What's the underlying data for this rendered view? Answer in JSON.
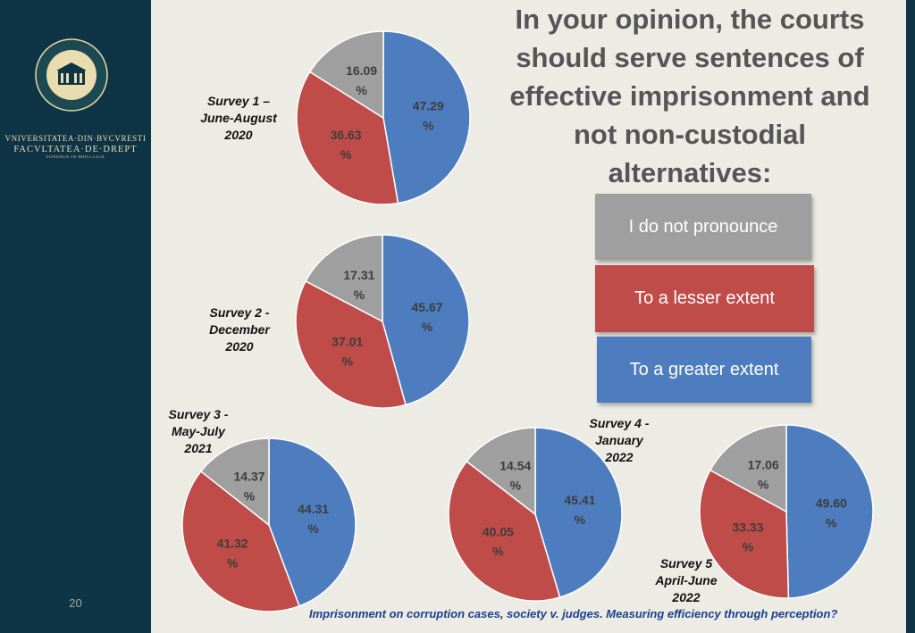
{
  "sidebar": {
    "university": "VNIVERSITATEA·DIN·BVCVRESTI",
    "faculty": "FACVLTATEA·DE·DREPT",
    "founded": "FONDATA·IN·MDCCCLIX",
    "page_number": "20"
  },
  "title": "In your opinion, the courts should serve sentences of effective imprisonment and not non-custodial alternatives:",
  "legend": [
    {
      "label": "I do not pronounce",
      "color": "#9f9f9f"
    },
    {
      "label": "To a lesser extent",
      "color": "#c04c4a"
    },
    {
      "label": "To a greater extent",
      "color": "#4d7dbf"
    }
  ],
  "footer": "Imprisonment on corruption cases, society v. judges. Measuring efficiency through perception?",
  "chart_data": [
    {
      "type": "pie",
      "title": "Survey 1 – June-August 2020",
      "title_lines": [
        "Survey 1 –",
        "June-August",
        "2020"
      ],
      "labels": [
        "To a greater extent",
        "To a lesser extent",
        "I do not pronounce"
      ],
      "values": [
        47.29,
        36.63,
        16.09
      ]
    },
    {
      "type": "pie",
      "title": "Survey 2 - December 2020",
      "title_lines": [
        "Survey 2  -",
        "December",
        "2020"
      ],
      "labels": [
        "To a greater extent",
        "To a lesser extent",
        "I do not pronounce"
      ],
      "values": [
        45.67,
        37.01,
        17.31
      ]
    },
    {
      "type": "pie",
      "title": "Survey 3 - May-July 2021",
      "title_lines": [
        "Survey 3  -",
        "May-July",
        "2021"
      ],
      "labels": [
        "To a greater extent",
        "To a lesser extent",
        "I do not pronounce"
      ],
      "values": [
        44.31,
        41.32,
        14.37
      ]
    },
    {
      "type": "pie",
      "title": "Survey 4 - January 2022",
      "title_lines": [
        "Survey 4  -",
        "January",
        "2022"
      ],
      "labels": [
        "To a greater extent",
        "To a lesser extent",
        "I do not pronounce"
      ],
      "values": [
        45.41,
        40.05,
        14.54
      ]
    },
    {
      "type": "pie",
      "title": "Survey 5 April-June 2022",
      "title_lines": [
        "Survey 5",
        "April-June",
        "2022"
      ],
      "labels": [
        "To a greater extent",
        "To a lesser extent",
        "I do not pronounce"
      ],
      "values": [
        49.6,
        33.33,
        17.06
      ]
    }
  ]
}
